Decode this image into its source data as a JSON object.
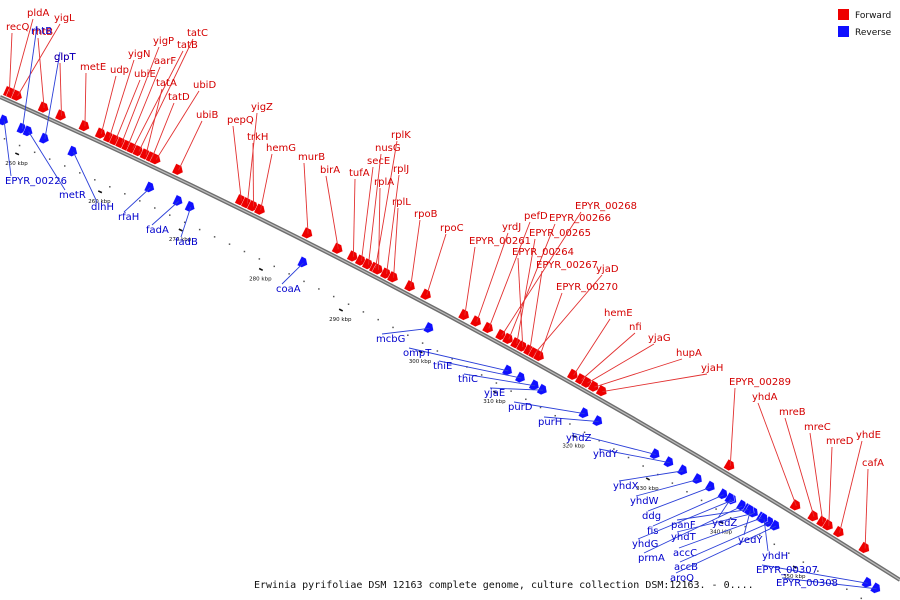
{
  "legend": {
    "forward_label": "Forward",
    "reverse_label": "Reverse",
    "forward_color": "#ee0000",
    "reverse_color": "#1010ff"
  },
  "caption": "Erwinia pyrifoliae DSM 12163 complete genome, culture collection DSM:12163. - 0....",
  "ticks": [
    "250 kbp",
    "260 kbp",
    "270 kbp",
    "280 kbp",
    "290 kbp",
    "300 kbp",
    "310 kbp",
    "320 kbp",
    "330 kbp",
    "340 kbp",
    "350 kbp"
  ],
  "forward_genes": [
    "recQ",
    "pldA",
    "yigL",
    "rhtB",
    "glpT",
    "metE",
    "udp",
    "yigN",
    "ubiE",
    "yigP",
    "aarF",
    "tatB",
    "tatC",
    "tatA",
    "tatD",
    "ubiD",
    "ubiB",
    "pepQ",
    "yigZ",
    "trkH",
    "hemG",
    "murB",
    "birA",
    "tufA",
    "secE",
    "nusG",
    "rplK",
    "rplA",
    "rplJ",
    "rplL",
    "rpoB",
    "rpoC",
    "EPYR_00261",
    "yrdJ",
    "pefD",
    "EPYR_00268",
    "EPYR_00266",
    "EPYR_00265",
    "EPYR_00264",
    "EPYR_00267",
    "yjaD",
    "EPYR_00270",
    "hemE",
    "nfi",
    "yjaG",
    "hupA",
    "yjaH",
    "EPYR_00289",
    "yhdA",
    "mreB",
    "mreC",
    "mreD",
    "yhdE",
    "cafA"
  ],
  "reverse_genes": [
    "rhtB",
    "glpT",
    "EPYR_00226",
    "metR",
    "dlhH",
    "rfaH",
    "fadA",
    "fadB",
    "coaA",
    "mcbG",
    "ompT",
    "thiE",
    "thiC",
    "yjaE",
    "purD",
    "purH",
    "yhdZ",
    "yhdY",
    "yhdX",
    "yhdW",
    "ddg",
    "fis",
    "yhdG",
    "prmA",
    "panF",
    "yhdT",
    "accC",
    "accB",
    "aroQ",
    "yedZ",
    "yedY",
    "yhdH",
    "EPYR_00307",
    "EPYR_00308"
  ]
}
